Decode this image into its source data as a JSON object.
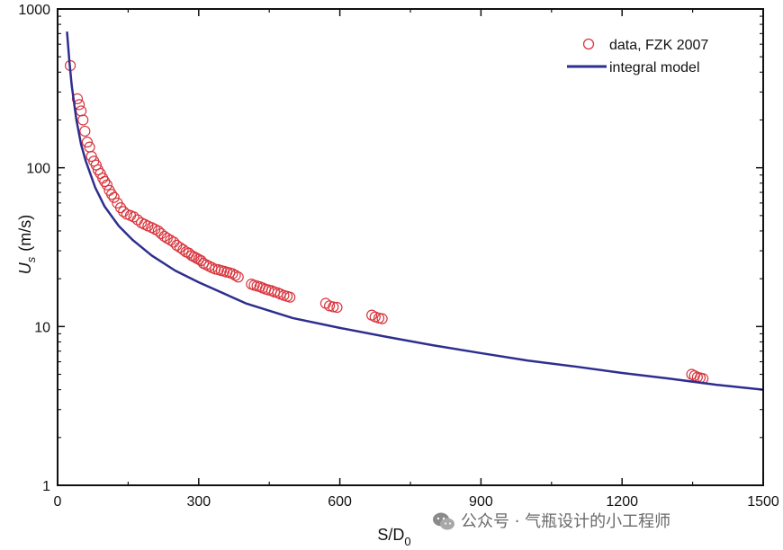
{
  "chart_data": {
    "type": "scatter",
    "xlabel": "S/D",
    "xlabel_subscript": "0",
    "ylabel": "U",
    "ylabel_subscript": "s",
    "ylabel_unit": "(m/s)",
    "xlim": [
      0,
      1500
    ],
    "ylim": [
      1,
      1000
    ],
    "y_scale": "log",
    "x_ticks": [
      0,
      300,
      600,
      900,
      1200,
      1500
    ],
    "x_tick_labels": [
      "0",
      "300",
      "600",
      "900",
      "1200",
      "1500"
    ],
    "y_ticks": [
      1,
      10,
      100,
      1000
    ],
    "y_tick_labels": [
      "1",
      "10",
      "100",
      "1000"
    ],
    "grid": false,
    "legend_position": "top-right",
    "series": [
      {
        "name": "data, FZK 2007",
        "type": "scatter",
        "marker": "open-circle",
        "color": "#d9363e",
        "x": [
          27,
          42,
          46,
          50,
          54,
          58,
          63,
          68,
          72,
          77,
          82,
          86,
          91,
          96,
          100,
          105,
          110,
          115,
          120,
          127,
          134,
          140,
          147,
          155,
          162,
          170,
          178,
          185,
          192,
          200,
          207,
          214,
          220,
          227,
          233,
          240,
          247,
          253,
          260,
          267,
          273,
          279,
          285,
          290,
          295,
          300,
          305,
          310,
          316,
          322,
          328,
          335,
          342,
          348,
          354,
          360,
          366,
          372,
          378,
          384,
          412,
          418,
          424,
          430,
          436,
          442,
          448,
          455,
          461,
          468,
          474,
          481,
          488,
          494,
          570,
          578,
          586,
          594,
          668,
          675,
          683,
          690,
          1348,
          1354,
          1360,
          1366,
          1372
        ],
        "y": [
          440,
          272,
          250,
          228,
          200,
          170,
          145,
          135,
          118,
          110,
          104,
          97,
          92,
          86,
          82,
          78,
          72,
          68,
          65,
          60,
          56,
          53,
          51,
          50,
          49,
          47,
          45,
          44,
          43,
          42,
          41,
          40,
          38.5,
          37,
          36,
          35,
          34,
          32.5,
          31.5,
          30.5,
          29.5,
          29,
          28,
          27.5,
          27,
          26.5,
          26,
          25,
          24.5,
          24,
          23.5,
          23,
          22.8,
          22.5,
          22.3,
          22,
          21.8,
          21.5,
          21,
          20.5,
          18.5,
          18.2,
          18,
          17.8,
          17.5,
          17.2,
          17,
          16.8,
          16.5,
          16.3,
          16,
          15.7,
          15.5,
          15.3,
          14,
          13.5,
          13.3,
          13.2,
          11.8,
          11.5,
          11.3,
          11.2,
          5,
          4.9,
          4.8,
          4.75,
          4.7
        ]
      },
      {
        "name": "integral model",
        "type": "line",
        "color": "#2e2e8f",
        "x": [
          20,
          25,
          30,
          40,
          50,
          60,
          80,
          100,
          130,
          160,
          200,
          250,
          300,
          400,
          500,
          600,
          700,
          800,
          900,
          1000,
          1100,
          1200,
          1300,
          1400,
          1500
        ],
        "y": [
          720,
          470,
          330,
          200,
          140,
          110,
          75,
          57,
          43,
          35,
          28,
          22.5,
          19,
          14,
          11.3,
          9.8,
          8.6,
          7.6,
          6.8,
          6.1,
          5.6,
          5.1,
          4.7,
          4.3,
          4.0
        ]
      }
    ]
  },
  "legend": {
    "items": [
      "data, FZK 2007",
      "integral model"
    ]
  },
  "watermark": {
    "text": "公众号 · 气瓶设计的小工程师"
  },
  "colors": {
    "marker": "#d9363e",
    "line": "#2e2e8f",
    "axis": "#111111"
  }
}
